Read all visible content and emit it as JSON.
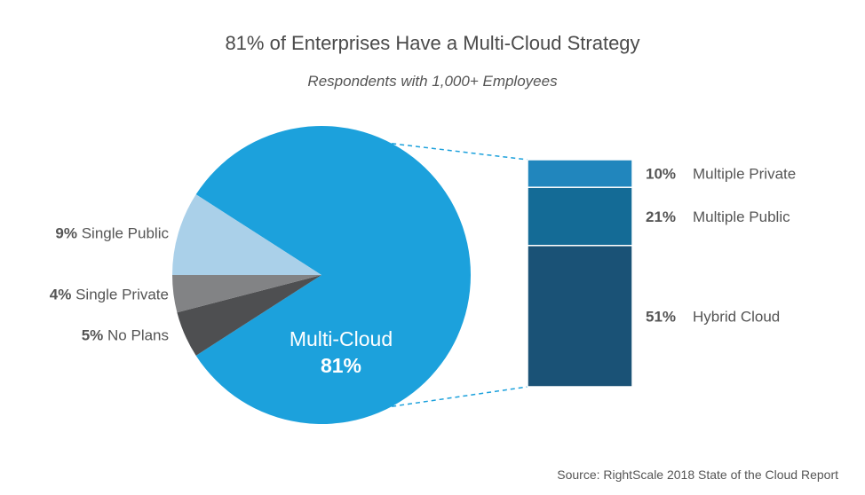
{
  "title": "81% of Enterprises Have a Multi-Cloud Strategy",
  "subtitle": "Respondents with 1,000+ Employees",
  "source": "Source: RightScale 2018 State of the Cloud Report",
  "chart_data": [
    {
      "type": "pie",
      "center_label": "Multi-Cloud",
      "center_value": "81%",
      "slices": [
        {
          "name": "Multi-Cloud",
          "value": 81,
          "pct_label": "",
          "color": "#1ca1dc"
        },
        {
          "name": "No Plans",
          "value": 5,
          "pct_label": "5%",
          "color": "#4e4f51"
        },
        {
          "name": "Single Private",
          "value": 4,
          "pct_label": "4%",
          "color": "#828385"
        },
        {
          "name": "Single Public",
          "value": 9,
          "pct_label": "9%",
          "color": "#aad0e9"
        }
      ]
    },
    {
      "type": "bar",
      "stacked": true,
      "series": [
        {
          "name": "Multiple Private",
          "value": 10,
          "pct_label": "10%",
          "color": "#2186bd"
        },
        {
          "name": "Multiple Public",
          "value": 21,
          "pct_label": "21%",
          "color": "#146b96"
        },
        {
          "name": "Hybrid Cloud",
          "value": 51,
          "pct_label": "51%",
          "color": "#1a5276"
        }
      ]
    }
  ]
}
